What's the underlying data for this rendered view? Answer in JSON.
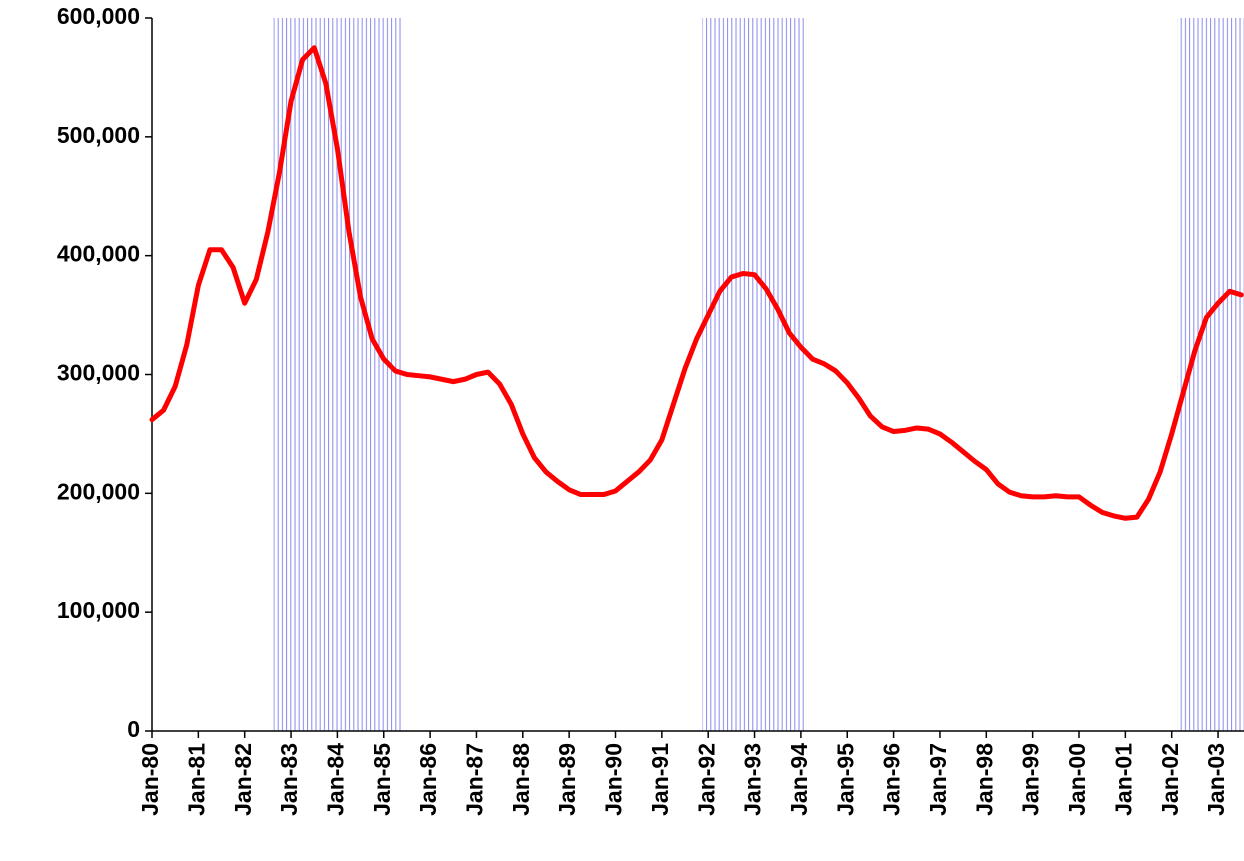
{
  "chart_data": {
    "type": "line",
    "categories": [
      "Jan-80",
      null,
      null,
      null,
      "Jan-81",
      null,
      null,
      null,
      "Jan-82",
      null,
      null,
      null,
      "Jan-83",
      null,
      null,
      null,
      "Jan-84",
      null,
      null,
      null,
      "Jan-85",
      null,
      null,
      null,
      "Jan-86",
      null,
      null,
      null,
      "Jan-87",
      null,
      null,
      null,
      "Jan-88",
      null,
      null,
      null,
      "Jan-89",
      null,
      null,
      null,
      "Jan-90",
      null,
      null,
      null,
      "Jan-91",
      null,
      null,
      null,
      "Jan-92",
      null,
      null,
      null,
      "Jan-93",
      null,
      null,
      null,
      "Jan-94",
      null,
      null,
      null,
      "Jan-95",
      null,
      null,
      null,
      "Jan-96",
      null,
      null,
      null,
      "Jan-97",
      null,
      null,
      null,
      "Jan-98",
      null,
      null,
      null,
      "Jan-99",
      null,
      null,
      null,
      "Jan-00",
      null,
      null,
      null,
      "Jan-01",
      null,
      null,
      null,
      "Jan-02",
      null,
      null,
      null,
      "Jan-03",
      null,
      null
    ],
    "values": [
      262000,
      270000,
      290000,
      325000,
      375000,
      405000,
      405000,
      390000,
      360000,
      380000,
      420000,
      470000,
      530000,
      565000,
      575000,
      545000,
      490000,
      420000,
      365000,
      330000,
      313000,
      303000,
      300000,
      299000,
      298000,
      296000,
      294000,
      296000,
      300000,
      302000,
      292000,
      275000,
      250000,
      230000,
      218000,
      210000,
      203000,
      199000,
      199000,
      199000,
      202000,
      210000,
      218000,
      228000,
      245000,
      275000,
      305000,
      330000,
      350000,
      370000,
      382000,
      385000,
      384000,
      372000,
      355000,
      335000,
      323000,
      313000,
      309000,
      303000,
      293000,
      280000,
      265000,
      256000,
      252000,
      253000,
      255000,
      254000,
      250000,
      243000,
      235000,
      227000,
      220000,
      208000,
      201000,
      198000,
      197000,
      197000,
      198000,
      197000,
      197000,
      190000,
      184000,
      181000,
      179000,
      180000,
      195000,
      218000,
      250000,
      285000,
      320000,
      348000,
      360000,
      370000,
      367000
    ],
    "color": "#ff0000",
    "shaded_periods": [
      [
        11,
        21
      ],
      [
        48,
        56
      ],
      [
        89,
        94
      ]
    ],
    "shade_color": "#8888ee",
    "ylim": [
      0,
      600000
    ],
    "yticks": [
      {
        "value": 0,
        "label": "0"
      },
      {
        "value": 100000,
        "label": "100,000"
      },
      {
        "value": 200000,
        "label": "200,000"
      },
      {
        "value": 300000,
        "label": "300,000"
      },
      {
        "value": 400000,
        "label": "400,000"
      },
      {
        "value": 500000,
        "label": "500,000"
      },
      {
        "value": 600000,
        "label": "600,000"
      }
    ]
  }
}
